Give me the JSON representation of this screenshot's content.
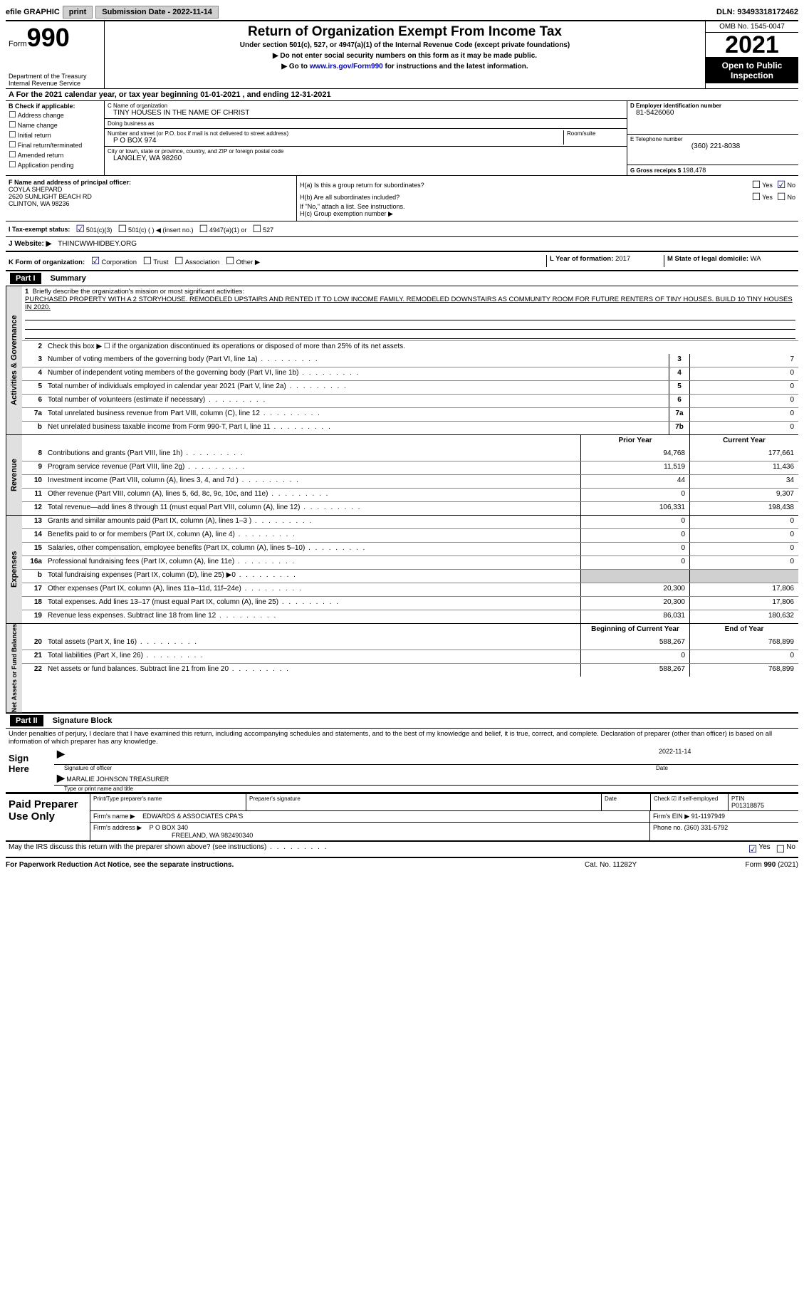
{
  "topbar": {
    "efile_label": "efile GRAPHIC",
    "print_btn": "print",
    "sub_date_label": "Submission Date - 2022-11-14",
    "dln": "DLN: 93493318172462"
  },
  "header": {
    "form_label": "Form",
    "form_num": "990",
    "dept": "Department of the Treasury",
    "irs": "Internal Revenue Service",
    "title": "Return of Organization Exempt From Income Tax",
    "subtitle": "Under section 501(c), 527, or 4947(a)(1) of the Internal Revenue Code (except private foundations)",
    "note1": "▶ Do not enter social security numbers on this form as it may be made public.",
    "note2_pre": "▶ Go to ",
    "note2_link": "www.irs.gov/Form990",
    "note2_post": " for instructions and the latest information.",
    "omb": "OMB No. 1545-0047",
    "year": "2021",
    "open": "Open to Public Inspection"
  },
  "period": "A For the 2021 calendar year, or tax year beginning 01-01-2021   , and ending 12-31-2021",
  "b": {
    "label": "B Check if applicable:",
    "opts": [
      "Address change",
      "Name change",
      "Initial return",
      "Final return/terminated",
      "Amended return",
      "Application pending"
    ]
  },
  "c": {
    "name_label": "C Name of organization",
    "name": "TINY HOUSES IN THE NAME OF CHRIST",
    "dba_label": "Doing business as",
    "dba": "",
    "street_label": "Number and street (or P.O. box if mail is not delivered to street address)",
    "room_label": "Room/suite",
    "street": "P O BOX 974",
    "city_label": "City or town, state or province, country, and ZIP or foreign postal code",
    "city": "LANGLEY, WA  98260"
  },
  "d": {
    "ein_label": "D Employer identification number",
    "ein": "81-5426060",
    "phone_label": "E Telephone number",
    "phone": "(360) 221-8038",
    "gross_label": "G Gross receipts $",
    "gross": "198,478"
  },
  "f": {
    "label": "F  Name and address of principal officer:",
    "name": "COYLA SHEPARD",
    "addr1": "2620 SUNLIGHT BEACH RD",
    "addr2": "CLINTON, WA  98236"
  },
  "h": {
    "a": "H(a)  Is this a group return for subordinates?",
    "b": "H(b)  Are all subordinates included?",
    "b_note": "If \"No,\" attach a list. See instructions.",
    "c": "H(c)  Group exemption number ▶",
    "yes": "Yes",
    "no": "No"
  },
  "i": {
    "label": "I   Tax-exempt status:",
    "opt1": "501(c)(3)",
    "opt2": "501(c) (  ) ◀ (insert no.)",
    "opt3": "4947(a)(1) or",
    "opt4": "527"
  },
  "j": {
    "label": "J   Website: ▶",
    "val": "THINCWWHIDBEY.ORG"
  },
  "k": {
    "label": "K Form of organization:",
    "corp": "Corporation",
    "trust": "Trust",
    "assoc": "Association",
    "other": "Other ▶",
    "l_label": "L Year of formation:",
    "l_val": "2017",
    "m_label": "M State of legal domicile:",
    "m_val": "WA"
  },
  "part1": {
    "hdr": "Part I",
    "title": "Summary",
    "q1": "Briefly describe the organization's mission or most significant activities:",
    "mission": "PURCHASED PROPERTY WITH A 2 STORYHOUSE. REMODELED UPSTAIRS AND RENTED IT TO LOW INCOME FAMILY. REMODELED DOWNSTAIRS AS COMMUNITY ROOM FOR FUTURE RENTERS OF TINY HOUSES. BUILD 10 TINY HOUSES IN 2020.",
    "q2": "Check this box ▶ ☐ if the organization discontinued its operations or disposed of more than 25% of its net assets.",
    "rows_gov": [
      {
        "n": "3",
        "d": "Number of voting members of the governing body (Part VI, line 1a)",
        "box": "3",
        "v": "7"
      },
      {
        "n": "4",
        "d": "Number of independent voting members of the governing body (Part VI, line 1b)",
        "box": "4",
        "v": "0"
      },
      {
        "n": "5",
        "d": "Total number of individuals employed in calendar year 2021 (Part V, line 2a)",
        "box": "5",
        "v": "0"
      },
      {
        "n": "6",
        "d": "Total number of volunteers (estimate if necessary)",
        "box": "6",
        "v": "0"
      },
      {
        "n": "7a",
        "d": "Total unrelated business revenue from Part VIII, column (C), line 12",
        "box": "7a",
        "v": "0"
      },
      {
        "n": "b",
        "d": "Net unrelated business taxable income from Form 990-T, Part I, line 11",
        "box": "7b",
        "v": "0"
      }
    ],
    "col_prior": "Prior Year",
    "col_curr": "Current Year",
    "rows_rev": [
      {
        "n": "8",
        "d": "Contributions and grants (Part VIII, line 1h)",
        "p": "94,768",
        "c": "177,661"
      },
      {
        "n": "9",
        "d": "Program service revenue (Part VIII, line 2g)",
        "p": "11,519",
        "c": "11,436"
      },
      {
        "n": "10",
        "d": "Investment income (Part VIII, column (A), lines 3, 4, and 7d )",
        "p": "44",
        "c": "34"
      },
      {
        "n": "11",
        "d": "Other revenue (Part VIII, column (A), lines 5, 6d, 8c, 9c, 10c, and 11e)",
        "p": "0",
        "c": "9,307"
      },
      {
        "n": "12",
        "d": "Total revenue—add lines 8 through 11 (must equal Part VIII, column (A), line 12)",
        "p": "106,331",
        "c": "198,438"
      }
    ],
    "rows_exp": [
      {
        "n": "13",
        "d": "Grants and similar amounts paid (Part IX, column (A), lines 1–3 )",
        "p": "0",
        "c": "0"
      },
      {
        "n": "14",
        "d": "Benefits paid to or for members (Part IX, column (A), line 4)",
        "p": "0",
        "c": "0"
      },
      {
        "n": "15",
        "d": "Salaries, other compensation, employee benefits (Part IX, column (A), lines 5–10)",
        "p": "0",
        "c": "0"
      },
      {
        "n": "16a",
        "d": "Professional fundraising fees (Part IX, column (A), line 11e)",
        "p": "0",
        "c": "0"
      },
      {
        "n": "b",
        "d": "Total fundraising expenses (Part IX, column (D), line 25) ▶0",
        "p": "",
        "c": "",
        "shaded": true
      },
      {
        "n": "17",
        "d": "Other expenses (Part IX, column (A), lines 11a–11d, 11f–24e)",
        "p": "20,300",
        "c": "17,806"
      },
      {
        "n": "18",
        "d": "Total expenses. Add lines 13–17 (must equal Part IX, column (A), line 25)",
        "p": "20,300",
        "c": "17,806"
      },
      {
        "n": "19",
        "d": "Revenue less expenses. Subtract line 18 from line 12",
        "p": "86,031",
        "c": "180,632"
      }
    ],
    "col_begin": "Beginning of Current Year",
    "col_end": "End of Year",
    "rows_net": [
      {
        "n": "20",
        "d": "Total assets (Part X, line 16)",
        "p": "588,267",
        "c": "768,899"
      },
      {
        "n": "21",
        "d": "Total liabilities (Part X, line 26)",
        "p": "0",
        "c": "0"
      },
      {
        "n": "22",
        "d": "Net assets or fund balances. Subtract line 21 from line 20",
        "p": "588,267",
        "c": "768,899"
      }
    ],
    "vtab_gov": "Activities & Governance",
    "vtab_rev": "Revenue",
    "vtab_exp": "Expenses",
    "vtab_net": "Net Assets or Fund Balances"
  },
  "part2": {
    "hdr": "Part II",
    "title": "Signature Block",
    "decl": "Under penalties of perjury, I declare that I have examined this return, including accompanying schedules and statements, and to the best of my knowledge and belief, it is true, correct, and complete. Declaration of preparer (other than officer) is based on all information of which preparer has any knowledge.",
    "sign_here": "Sign Here",
    "sig_of": "Signature of officer",
    "sig_date": "Date",
    "sig_date_val": "2022-11-14",
    "printed": "MARALIE JOHNSON  TREASURER",
    "printed_label": "Type or print name and title",
    "paid": "Paid Preparer Use Only",
    "prep_name_label": "Print/Type preparer's name",
    "prep_sig_label": "Preparer's signature",
    "date_label": "Date",
    "check_self": "Check ☑ if self-employed",
    "ptin_label": "PTIN",
    "ptin": "P01318875",
    "firm_name_label": "Firm's name    ▶",
    "firm_name": "EDWARDS & ASSOCIATES CPA'S",
    "firm_ein_label": "Firm's EIN ▶",
    "firm_ein": "91-1197949",
    "firm_addr_label": "Firm's address ▶",
    "firm_addr": "P O BOX 340",
    "firm_city": "FREELAND, WA  982490340",
    "firm_phone_label": "Phone no.",
    "firm_phone": "(360) 331-5792",
    "discuss": "May the IRS discuss this return with the preparer shown above? (see instructions)",
    "yes": "Yes",
    "no": "No"
  },
  "footer": {
    "pra": "For Paperwork Reduction Act Notice, see the separate instructions.",
    "cat": "Cat. No. 11282Y",
    "form": "Form 990 (2021)"
  }
}
